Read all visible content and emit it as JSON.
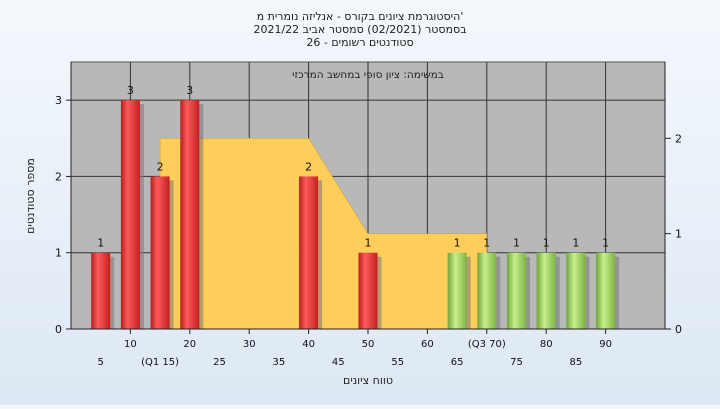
{
  "chart_data": {
    "type": "bar",
    "title_lines": [
      "היסטוגרמת ציונים בקורס - אנליזה נומרית מ'",
      "בסמסטר  (02/2021)  סמסטר אביב 2021/22",
      "סטודנטים רשומים - 26"
    ],
    "subtitle": "במשימה: ציון סופי במחשב המרכזי",
    "ylabel": "מספר סטודנטים",
    "xlabel": "טווח ציונים",
    "ylim": [
      0,
      3.5
    ],
    "y_ticks": [
      "0",
      "1",
      "2",
      "3"
    ],
    "y2lim": [
      0,
      2.8
    ],
    "y2_ticks": [
      "0",
      "1",
      "2"
    ],
    "xlim": [
      0,
      100
    ],
    "x_tick_labels_upper": [
      {
        "x": 10,
        "label": "10"
      },
      {
        "x": 20,
        "label": "20"
      },
      {
        "x": 30,
        "label": "30"
      },
      {
        "x": 40,
        "label": "40"
      },
      {
        "x": 50,
        "label": "50"
      },
      {
        "x": 60,
        "label": "60"
      },
      {
        "x": 70,
        "label": "(Q3 70)"
      },
      {
        "x": 80,
        "label": "80"
      },
      {
        "x": 90,
        "label": "90"
      }
    ],
    "x_tick_labels_lower": [
      {
        "x": 5,
        "label": "5"
      },
      {
        "x": 15,
        "label": "(Q1 15)"
      },
      {
        "x": 25,
        "label": "25"
      },
      {
        "x": 35,
        "label": "35"
      },
      {
        "x": 45,
        "label": "45"
      },
      {
        "x": 55,
        "label": "55"
      },
      {
        "x": 65,
        "label": "65"
      },
      {
        "x": 75,
        "label": "75"
      },
      {
        "x": 85,
        "label": "85"
      }
    ],
    "bars": [
      {
        "x": 5,
        "value": 1,
        "label": "1",
        "color": "red"
      },
      {
        "x": 10,
        "value": 3,
        "label": "3",
        "color": "red"
      },
      {
        "x": 15,
        "value": 2,
        "label": "2",
        "color": "red"
      },
      {
        "x": 20,
        "value": 3,
        "label": "3",
        "color": "red"
      },
      {
        "x": 40,
        "value": 2,
        "label": "2",
        "color": "red"
      },
      {
        "x": 50,
        "value": 1,
        "label": "1",
        "color": "red"
      },
      {
        "x": 65,
        "value": 1,
        "label": "1",
        "color": "green"
      },
      {
        "x": 70,
        "value": 1,
        "label": "1",
        "color": "green"
      },
      {
        "x": 75,
        "value": 1,
        "label": "1",
        "color": "green"
      },
      {
        "x": 80,
        "value": 1,
        "label": "1",
        "color": "green"
      },
      {
        "x": 85,
        "value": 1,
        "label": "1",
        "color": "green"
      },
      {
        "x": 90,
        "value": 1,
        "label": "1",
        "color": "green"
      }
    ],
    "box_series": {
      "y_axis": "right",
      "points": [
        [
          15,
          0
        ],
        [
          15,
          2
        ],
        [
          40,
          2
        ],
        [
          50,
          1
        ],
        [
          70,
          1
        ],
        [
          70,
          0
        ]
      ]
    },
    "colors": {
      "plot_bg": "#b8b8b8",
      "grid": "#333333",
      "area_fill": "#ffcd5a",
      "red_bar": "#e83535",
      "green_bar": "#9ad05c"
    },
    "grid": true
  }
}
